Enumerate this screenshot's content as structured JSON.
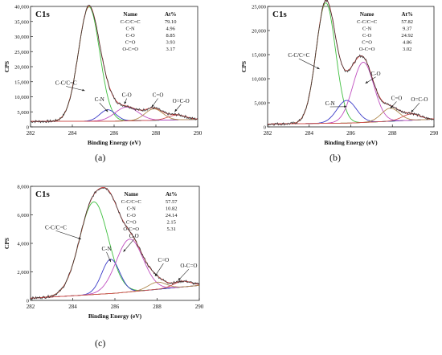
{
  "chart_data": [
    {
      "type": "line",
      "panel_label": "(a)",
      "title": "C1s",
      "xlabel": "Binding Energy (eV)",
      "ylabel": "CPS",
      "xlim": [
        282,
        290
      ],
      "ylim": [
        0,
        40000
      ],
      "x_ticks": [
        282,
        284,
        286,
        288,
        290
      ],
      "y_ticks": [
        0,
        5000,
        10000,
        15000,
        20000,
        25000,
        30000,
        35000,
        40000
      ],
      "y_tick_labels": [
        "0",
        "5,000",
        "10,000",
        "15,000",
        "20,000",
        "25,000",
        "30,000",
        "35,000",
        "40,000"
      ],
      "background": [
        [
          282,
          1800
        ],
        [
          286,
          1900
        ],
        [
          290,
          2500
        ]
      ],
      "peaks": [
        {
          "label": "C-C/C=C",
          "center": 284.8,
          "height": 38000,
          "fwhm": 1.2,
          "color": "#3fbf3f",
          "label_x": 283.7,
          "label_y": 14000,
          "arrow_to": [
            284.6,
            12000
          ]
        },
        {
          "label": "C-N",
          "center": 285.7,
          "height": 3800,
          "fwhm": 0.9,
          "color": "#3a3ac8",
          "label_x": 285.3,
          "label_y": 8500,
          "arrow_to": [
            285.7,
            5000
          ]
        },
        {
          "label": "C-O",
          "center": 286.6,
          "height": 4600,
          "fwhm": 1.3,
          "color": "#c050c0",
          "label_x": 286.6,
          "label_y": 10000,
          "arrow_to": [
            286.5,
            7500
          ]
        },
        {
          "label": "C=O",
          "center": 287.9,
          "height": 3800,
          "fwhm": 1.0,
          "color": "#b08a50",
          "label_x": 288.1,
          "label_y": 10000,
          "arrow_to": [
            287.8,
            6500
          ]
        },
        {
          "label": "O=C-O",
          "center": 289.0,
          "height": 1600,
          "fwhm": 1.0,
          "color": "#d05050",
          "label_x": 289.2,
          "label_y": 8000,
          "arrow_to": [
            288.9,
            5000
          ]
        }
      ],
      "table": {
        "headers": [
          "Name",
          "At%"
        ],
        "rows": [
          [
            "C-C/C=C",
            "79.10"
          ],
          [
            "C-N",
            "4.96"
          ],
          [
            "C-O",
            "8.85"
          ],
          [
            "C=O",
            "3.93"
          ],
          [
            "O-C=O",
            "3.17"
          ]
        ]
      }
    },
    {
      "type": "line",
      "panel_label": "(b)",
      "title": "C1s",
      "xlabel": "Binding Energy (eV)",
      "ylabel": "CPS",
      "xlim": [
        282,
        290
      ],
      "ylim": [
        0,
        25000
      ],
      "x_ticks": [
        282,
        284,
        286,
        288,
        290
      ],
      "y_ticks": [
        0,
        5000,
        10000,
        15000,
        20000,
        25000
      ],
      "y_tick_labels": [
        "0",
        "5,000",
        "10,000",
        "15,000",
        "20,000",
        "25,000"
      ],
      "background": [
        [
          282,
          600
        ],
        [
          286,
          800
        ],
        [
          290,
          1600
        ]
      ],
      "peaks": [
        {
          "label": "C-C/C=C",
          "center": 284.8,
          "height": 25000,
          "fwhm": 1.1,
          "color": "#3fbf3f",
          "label_x": 283.5,
          "label_y": 14500,
          "arrow_to": [
            284.5,
            12000
          ]
        },
        {
          "label": "C-N",
          "center": 285.8,
          "height": 4700,
          "fwhm": 1.1,
          "color": "#3a3ac8",
          "label_x": 285.0,
          "label_y": 4500,
          "arrow_to": [
            285.8,
            4200
          ]
        },
        {
          "label": "C-O",
          "center": 286.6,
          "height": 12500,
          "fwhm": 1.2,
          "color": "#c050c0",
          "label_x": 287.2,
          "label_y": 10700,
          "arrow_to": [
            286.7,
            9000
          ]
        },
        {
          "label": "C=O",
          "center": 287.9,
          "height": 2700,
          "fwhm": 1.0,
          "color": "#b08a50",
          "label_x": 288.2,
          "label_y": 5600,
          "arrow_to": [
            287.9,
            3800
          ]
        },
        {
          "label": "O=C-O",
          "center": 288.9,
          "height": 1300,
          "fwhm": 1.0,
          "color": "#d05050",
          "label_x": 289.3,
          "label_y": 5300,
          "arrow_to": [
            288.9,
            3000
          ]
        }
      ],
      "table": {
        "headers": [
          "Name",
          "At%"
        ],
        "rows": [
          [
            "C-C/C=C",
            "57.82"
          ],
          [
            "C-N",
            "9.37"
          ],
          [
            "C-O",
            "24.92"
          ],
          [
            "C=O",
            "4.86"
          ],
          [
            "O-C=O",
            "3.02"
          ]
        ]
      }
    },
    {
      "type": "line",
      "panel_label": "(c)",
      "title": "C1s",
      "xlabel": "Binding Energy (eV)",
      "ylabel": "CPS",
      "xlim": [
        282,
        290
      ],
      "ylim": [
        0,
        8000
      ],
      "x_ticks": [
        282,
        284,
        286,
        288,
        290
      ],
      "y_ticks": [
        0,
        2000,
        4000,
        6000,
        8000
      ],
      "y_tick_labels": [
        "0",
        "2,000",
        "4,000",
        "6,000",
        "8,000"
      ],
      "background": [
        [
          282,
          150
        ],
        [
          286,
          500
        ],
        [
          290,
          1050
        ]
      ],
      "peaks": [
        {
          "label": "C-C/C=C",
          "center": 285.0,
          "height": 6500,
          "fwhm": 1.6,
          "color": "#3fbf3f",
          "label_x": 283.2,
          "label_y": 5000,
          "arrow_to": [
            284.4,
            4300
          ]
        },
        {
          "label": "C-N",
          "center": 285.8,
          "height": 2400,
          "fwhm": 1.0,
          "color": "#3a3ac8",
          "label_x": 285.6,
          "label_y": 3500,
          "arrow_to": [
            285.8,
            2700
          ]
        },
        {
          "label": "C-O",
          "center": 286.7,
          "height": 3700,
          "fwhm": 1.5,
          "color": "#c050c0",
          "label_x": 286.9,
          "label_y": 4400,
          "arrow_to": [
            286.4,
            3400
          ]
        },
        {
          "label": "C=O",
          "center": 288.0,
          "height": 500,
          "fwhm": 1.0,
          "color": "#b08a50",
          "label_x": 288.3,
          "label_y": 2700,
          "arrow_to": [
            287.9,
            1700
          ]
        },
        {
          "label": "O-C=O",
          "center": 289.2,
          "height": 400,
          "fwhm": 1.0,
          "color": "#d05050",
          "label_x": 289.5,
          "label_y": 2300,
          "arrow_to": [
            289.0,
            1400
          ]
        }
      ],
      "table": {
        "headers": [
          "Name",
          "At%"
        ],
        "rows": [
          [
            "C-C/C=C",
            "57.57"
          ],
          [
            "C-N",
            "10.82"
          ],
          [
            "C-O",
            "24.14"
          ],
          [
            "C=O",
            "2.15"
          ],
          [
            "O-C=O",
            "5.31"
          ]
        ]
      }
    }
  ]
}
